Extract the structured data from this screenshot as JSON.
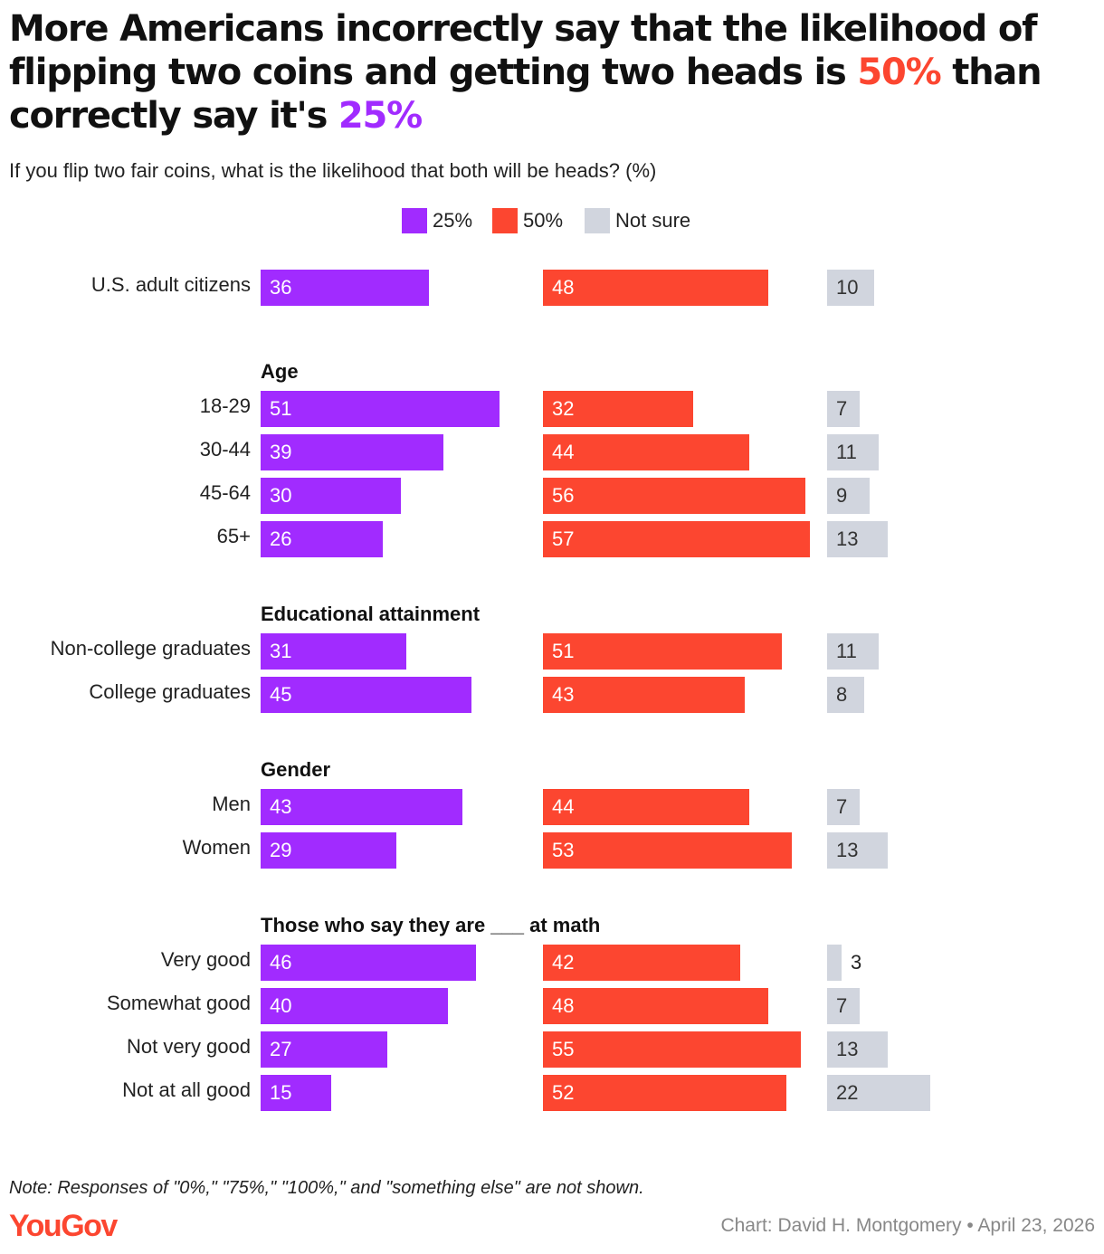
{
  "title": {
    "part1": "More Americans incorrectly say that the likelihood of flipping two coins and getting two heads is ",
    "highlight_50": "50%",
    "part2": " than correctly say it's ",
    "highlight_25": "25%"
  },
  "chart_data": {
    "type": "bar",
    "title": "More Americans incorrectly say that the likelihood of flipping two coins and getting two heads is 50% than correctly say it's 25%",
    "subtitle": "If you flip two fair coins, what is the likelihood that both will be heads? (%)",
    "legend": [
      "25%",
      "50%",
      "Not sure"
    ],
    "series_colors": {
      "25%": "#a12bff",
      "50%": "#fc4630",
      "Not sure": "#d1d5de"
    },
    "rows": [
      {
        "kind": "row",
        "label": "U.S. adult citizens",
        "values": [
          36,
          48,
          10
        ]
      },
      {
        "kind": "section",
        "label": "Age"
      },
      {
        "kind": "row",
        "label": "18-29",
        "values": [
          51,
          32,
          7
        ]
      },
      {
        "kind": "row",
        "label": "30-44",
        "values": [
          39,
          44,
          11
        ]
      },
      {
        "kind": "row",
        "label": "45-64",
        "values": [
          30,
          56,
          9
        ]
      },
      {
        "kind": "row",
        "label": "65+",
        "values": [
          26,
          57,
          13
        ]
      },
      {
        "kind": "section",
        "label": "Educational attainment"
      },
      {
        "kind": "row",
        "label": "Non-college graduates",
        "values": [
          31,
          51,
          11
        ]
      },
      {
        "kind": "row",
        "label": "College graduates",
        "values": [
          45,
          43,
          8
        ]
      },
      {
        "kind": "section",
        "label": "Gender"
      },
      {
        "kind": "row",
        "label": "Men",
        "values": [
          43,
          44,
          7
        ]
      },
      {
        "kind": "row",
        "label": "Women",
        "values": [
          29,
          53,
          13
        ]
      },
      {
        "kind": "section",
        "label": "Those who say they are ___ at math"
      },
      {
        "kind": "row",
        "label": "Very good",
        "values": [
          46,
          42,
          3
        ]
      },
      {
        "kind": "row",
        "label": "Somewhat good",
        "values": [
          40,
          48,
          7
        ]
      },
      {
        "kind": "row",
        "label": "Not very good",
        "values": [
          27,
          55,
          13
        ]
      },
      {
        "kind": "row",
        "label": "Not at all good",
        "values": [
          15,
          52,
          22
        ]
      }
    ]
  },
  "note": "Note: Responses of \"0%,\" \"75%,\" \"100%,\" and \"something else\" are not shown.",
  "logo": "YouGov",
  "credit": "Chart: David H. Montgomery • April 23, 2026"
}
